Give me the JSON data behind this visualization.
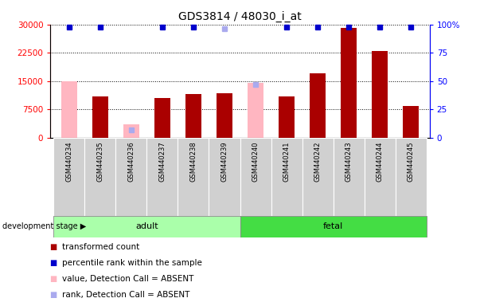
{
  "title": "GDS3814 / 48030_i_at",
  "samples": [
    "GSM440234",
    "GSM440235",
    "GSM440236",
    "GSM440237",
    "GSM440238",
    "GSM440239",
    "GSM440240",
    "GSM440241",
    "GSM440242",
    "GSM440243",
    "GSM440244",
    "GSM440245"
  ],
  "transformed_count": [
    null,
    11000,
    null,
    10500,
    11500,
    11800,
    null,
    11000,
    17000,
    29000,
    23000,
    8500
  ],
  "transformed_count_absent": [
    15000,
    null,
    3500,
    null,
    null,
    null,
    14500,
    null,
    null,
    null,
    null,
    null
  ],
  "percentile_rank": [
    98,
    98,
    null,
    98,
    98,
    null,
    null,
    98,
    98,
    98,
    98,
    98
  ],
  "percentile_rank_absent": [
    null,
    null,
    7,
    null,
    null,
    96,
    47,
    null,
    null,
    null,
    null,
    null
  ],
  "ylim_left": [
    0,
    30000
  ],
  "ylim_right": [
    0,
    100
  ],
  "yticks_left": [
    0,
    7500,
    15000,
    22500,
    30000
  ],
  "yticks_right": [
    0,
    25,
    50,
    75,
    100
  ],
  "bar_color_present": "#AA0000",
  "bar_color_absent": "#FFB6C1",
  "rank_color_present": "#0000CC",
  "rank_color_absent": "#AAAAEE",
  "adult_color": "#AAFFAA",
  "fetal_color": "#44DD44",
  "bar_width": 0.5,
  "rank_marker_size": 5
}
